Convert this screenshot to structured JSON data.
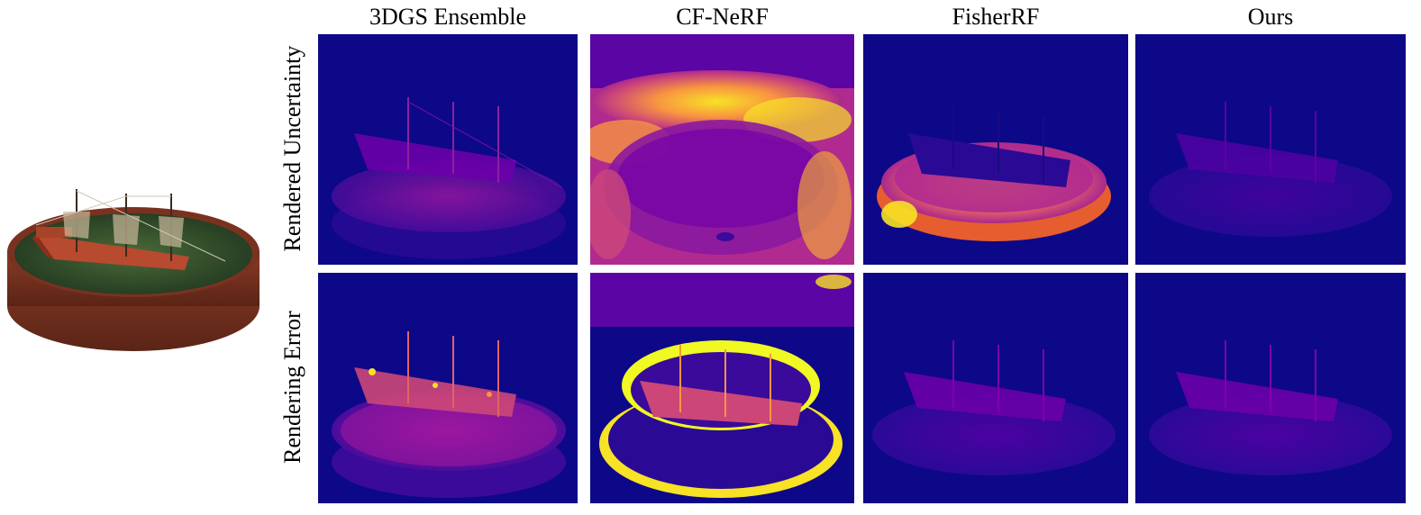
{
  "figure": {
    "column_headers": [
      "3DGS Ensemble",
      "CF-NeRF",
      "FisherRF",
      "Ours"
    ],
    "row_labels": [
      "Rendered Uncertainty",
      "Rendering Error"
    ],
    "colors": {
      "colormap_low": "#0d0887",
      "colormap_mid": "#b12a90",
      "colormap_high": "#f0f921",
      "background": "#ffffff"
    }
  }
}
